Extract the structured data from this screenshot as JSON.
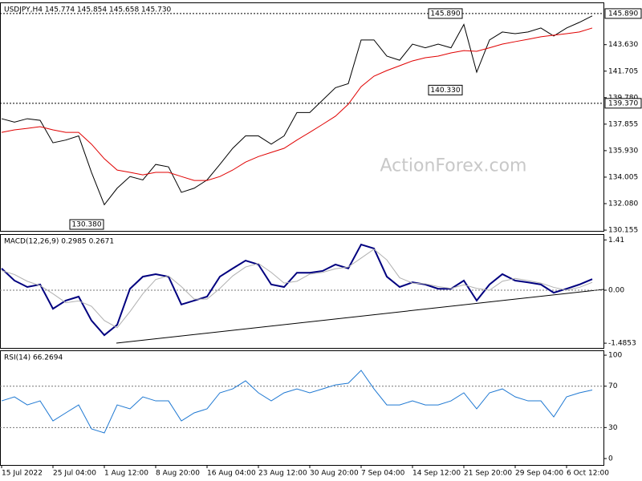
{
  "chart_data": [
    {
      "type": "line",
      "title": "USDJPY,H4 145.774 145.854 145.658 145.730",
      "watermark": "ActionForex.com",
      "series": [
        {
          "color": "#000000",
          "values": [
            138.25,
            138.0,
            138.25,
            138.13,
            136.5,
            136.7,
            137.0,
            134.35,
            132.0,
            133.2,
            134.05,
            133.8,
            134.93,
            134.75,
            132.9,
            133.2,
            133.8,
            134.93,
            136.1,
            137.0,
            137.0,
            136.4,
            137.0,
            138.7,
            138.7,
            139.6,
            140.5,
            140.8,
            143.97,
            143.97,
            142.8,
            142.5,
            143.67,
            143.4,
            143.67,
            143.4,
            145.1,
            141.63,
            143.97,
            144.55,
            144.43,
            144.55,
            144.84,
            144.26,
            144.84,
            145.25,
            145.72
          ]
        },
        {
          "color": "#e00000",
          "values": [
            137.26,
            137.44,
            137.55,
            137.67,
            137.44,
            137.26,
            137.26,
            136.4,
            135.34,
            134.52,
            134.35,
            134.17,
            134.35,
            134.35,
            134.05,
            133.76,
            133.76,
            134.05,
            134.52,
            135.1,
            135.5,
            135.8,
            136.1,
            136.7,
            137.26,
            137.84,
            138.43,
            139.3,
            140.58,
            141.34,
            141.75,
            142.1,
            142.45,
            142.68,
            142.8,
            143.03,
            143.2,
            143.15,
            143.4,
            143.67,
            143.85,
            144.02,
            144.2,
            144.32,
            144.43,
            144.55,
            144.84
          ]
        }
      ],
      "ylim": [
        130.1,
        146.7
      ],
      "yticks": [
        130.155,
        {
          "value": 132.08,
          "label": "132.080"
        },
        134.005,
        {
          "value": 135.93,
          "label": "135.930"
        },
        137.855,
        {
          "value": 139.78,
          "label": "139.780"
        },
        141.705,
        {
          "value": 143.63,
          "label": "143.630"
        }
      ],
      "levels": [
        {
          "value": 145.89,
          "label": "145.890"
        },
        {
          "value": 139.37,
          "label": "139.370"
        }
      ],
      "annotations": [
        {
          "value": 145.89,
          "label": "145.890"
        },
        {
          "value": 140.33,
          "label": "140.330"
        },
        {
          "value": 130.38,
          "label": "130.380"
        }
      ]
    },
    {
      "type": "line",
      "title": "MACD(12,26,9) 0.2985 0.2671",
      "series": [
        {
          "color": "#00007f",
          "values": [
            0.61,
            0.27,
            0.09,
            0.16,
            -0.52,
            -0.29,
            -0.18,
            -0.85,
            -1.26,
            -0.97,
            0.04,
            0.38,
            0.45,
            0.38,
            -0.4,
            -0.29,
            -0.18,
            0.38,
            0.61,
            0.83,
            0.72,
            0.16,
            0.09,
            0.49,
            0.49,
            0.54,
            0.72,
            0.61,
            1.28,
            1.17,
            0.38,
            0.09,
            0.22,
            0.16,
            0.04,
            0.04,
            0.27,
            -0.29,
            0.16,
            0.45,
            0.27,
            0.22,
            0.16,
            -0.07,
            0.04,
            0.16,
            0.31
          ]
        },
        {
          "color": "#b0b0b0",
          "values": [
            0.55,
            0.44,
            0.25,
            0.13,
            -0.1,
            -0.35,
            -0.3,
            -0.45,
            -0.85,
            -1.05,
            -0.6,
            -0.1,
            0.3,
            0.4,
            0.1,
            -0.25,
            -0.25,
            0.05,
            0.4,
            0.65,
            0.75,
            0.5,
            0.2,
            0.25,
            0.45,
            0.5,
            0.6,
            0.65,
            0.9,
            1.15,
            0.85,
            0.35,
            0.2,
            0.18,
            0.1,
            0.05,
            0.15,
            0.05,
            0.0,
            0.25,
            0.33,
            0.27,
            0.2,
            0.08,
            0.0,
            0.08,
            0.22
          ]
        }
      ],
      "ylim": [
        -1.618,
        1.573
      ],
      "yticks": [
        1.41,
        {
          "value": 0,
          "label": "0.00"
        },
        -1.4853
      ],
      "level_lines": [
        0
      ]
    },
    {
      "type": "line",
      "title": "RSI(14) 66.2694",
      "categories": [
        "15 Jul 2022",
        null,
        null,
        null,
        "25 Jul 04:00",
        null,
        null,
        null,
        "1 Aug 12:00",
        null,
        null,
        null,
        "8 Aug 20:00",
        null,
        null,
        null,
        "16 Aug 04:00",
        null,
        null,
        null,
        "23 Aug 12:00",
        null,
        null,
        null,
        "30 Aug 20:00",
        null,
        null,
        null,
        "7 Sep 04:00",
        null,
        null,
        null,
        "14 Sep 12:00",
        null,
        null,
        null,
        "21 Sep 20:00",
        null,
        null,
        null,
        "29 Sep 04:00",
        null,
        null,
        null,
        "6 Oct 12:00",
        null,
        null
      ],
      "series": [
        {
          "color": "#1e78d2",
          "values": [
            55.8,
            59.7,
            51.9,
            55.8,
            36.4,
            44.2,
            51.9,
            28.7,
            24.8,
            51.9,
            48.1,
            59.7,
            55.8,
            55.8,
            36.4,
            44.2,
            48.1,
            63.6,
            67.4,
            75.2,
            63.6,
            55.8,
            63.6,
            67.4,
            63.6,
            67.4,
            71.3,
            72.9,
            85.3,
            67.4,
            51.9,
            51.9,
            55.8,
            51.9,
            51.9,
            55.8,
            63.6,
            48.1,
            63.6,
            67.4,
            59.7,
            55.8,
            55.8,
            40.3,
            59.7,
            63.6,
            66.3
          ]
        }
      ],
      "ylim": [
        -6.2,
        104.7
      ],
      "yticks": [
        0,
        30,
        70,
        100
      ],
      "level_lines": [
        30,
        70
      ]
    }
  ]
}
